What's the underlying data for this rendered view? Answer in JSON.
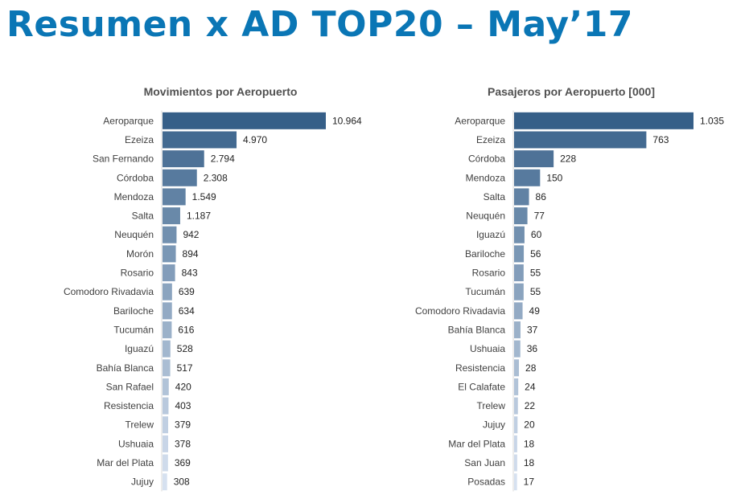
{
  "page": {
    "title": "Resumen x AD TOP20 – May’17"
  },
  "colors": {
    "title": "#0a76b5",
    "bar_darkest": "#365f88",
    "bar_lightest": "#d6e1f0"
  },
  "chart_data": [
    {
      "type": "bar",
      "orientation": "horizontal",
      "title": "Movimientos por Aeropuerto",
      "xlabel": "",
      "ylabel": "",
      "grid": false,
      "legend": "none",
      "categories": [
        "Aeroparque",
        "Ezeiza",
        "San Fernando",
        "Córdoba",
        "Mendoza",
        "Salta",
        "Neuquén",
        "Morón",
        "Rosario",
        "Comodoro Rivadavia",
        "Bariloche",
        "Tucumán",
        "Iguazú",
        "Bahía Blanca",
        "San Rafael",
        "Resistencia",
        "Trelew",
        "Ushuaia",
        "Mar del Plata",
        "Jujuy"
      ],
      "values": [
        10964,
        4970,
        2794,
        2308,
        1549,
        1187,
        942,
        894,
        843,
        639,
        634,
        616,
        528,
        517,
        420,
        403,
        379,
        378,
        369,
        308
      ],
      "value_labels": [
        "10.964",
        "4.970",
        "2.794",
        "2.308",
        "1.549",
        "1.187",
        "942",
        "894",
        "843",
        "639",
        "634",
        "616",
        "528",
        "517",
        "420",
        "403",
        "379",
        "378",
        "369",
        "308"
      ],
      "xlim": [
        0,
        10964
      ]
    },
    {
      "type": "bar",
      "orientation": "horizontal",
      "title": "Pasajeros por Aeropuerto [000]",
      "xlabel": "",
      "ylabel": "",
      "grid": false,
      "legend": "none",
      "categories": [
        "Aeroparque",
        "Ezeiza",
        "Córdoba",
        "Mendoza",
        "Salta",
        "Neuquén",
        "Iguazú",
        "Bariloche",
        "Rosario",
        "Tucumán",
        "Comodoro Rivadavia",
        "Bahía Blanca",
        "Ushuaia",
        "Resistencia",
        "El Calafate",
        "Trelew",
        "Jujuy",
        "Mar del Plata",
        "San Juan",
        "Posadas"
      ],
      "values": [
        1035,
        763,
        228,
        150,
        86,
        77,
        60,
        56,
        55,
        55,
        49,
        37,
        36,
        28,
        24,
        22,
        20,
        18,
        18,
        17
      ],
      "value_labels": [
        "1.035",
        "763",
        "228",
        "150",
        "86",
        "77",
        "60",
        "56",
        "55",
        "55",
        "49",
        "37",
        "36",
        "28",
        "24",
        "22",
        "20",
        "18",
        "18",
        "17"
      ],
      "xlim": [
        0,
        1035
      ]
    }
  ]
}
